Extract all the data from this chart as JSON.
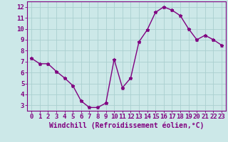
{
  "x": [
    0,
    1,
    2,
    3,
    4,
    5,
    6,
    7,
    8,
    9,
    10,
    11,
    12,
    13,
    14,
    15,
    16,
    17,
    18,
    19,
    20,
    21,
    22,
    23
  ],
  "y": [
    7.3,
    6.8,
    6.8,
    6.1,
    5.5,
    4.8,
    3.4,
    2.8,
    2.8,
    3.2,
    7.2,
    4.6,
    5.5,
    8.8,
    9.9,
    11.5,
    12.0,
    11.7,
    11.2,
    10.0,
    9.0,
    9.4,
    9.0,
    8.5
  ],
  "line_color": "#800080",
  "marker": "*",
  "marker_color": "#800080",
  "bg_color": "#cce8e8",
  "grid_color": "#aad0d0",
  "xlabel": "Windchill (Refroidissement éolien,°C)",
  "xlim": [
    -0.5,
    23.5
  ],
  "ylim": [
    2.5,
    12.5
  ],
  "yticks": [
    3,
    4,
    5,
    6,
    7,
    8,
    9,
    10,
    11,
    12
  ],
  "xticks": [
    0,
    1,
    2,
    3,
    4,
    5,
    6,
    7,
    8,
    9,
    10,
    11,
    12,
    13,
    14,
    15,
    16,
    17,
    18,
    19,
    20,
    21,
    22,
    23
  ],
  "tick_color": "#800080",
  "axis_color": "#800080",
  "xlabel_fontsize": 7.0,
  "tick_fontsize": 6.5,
  "line_width": 1.0,
  "marker_size": 3.5
}
